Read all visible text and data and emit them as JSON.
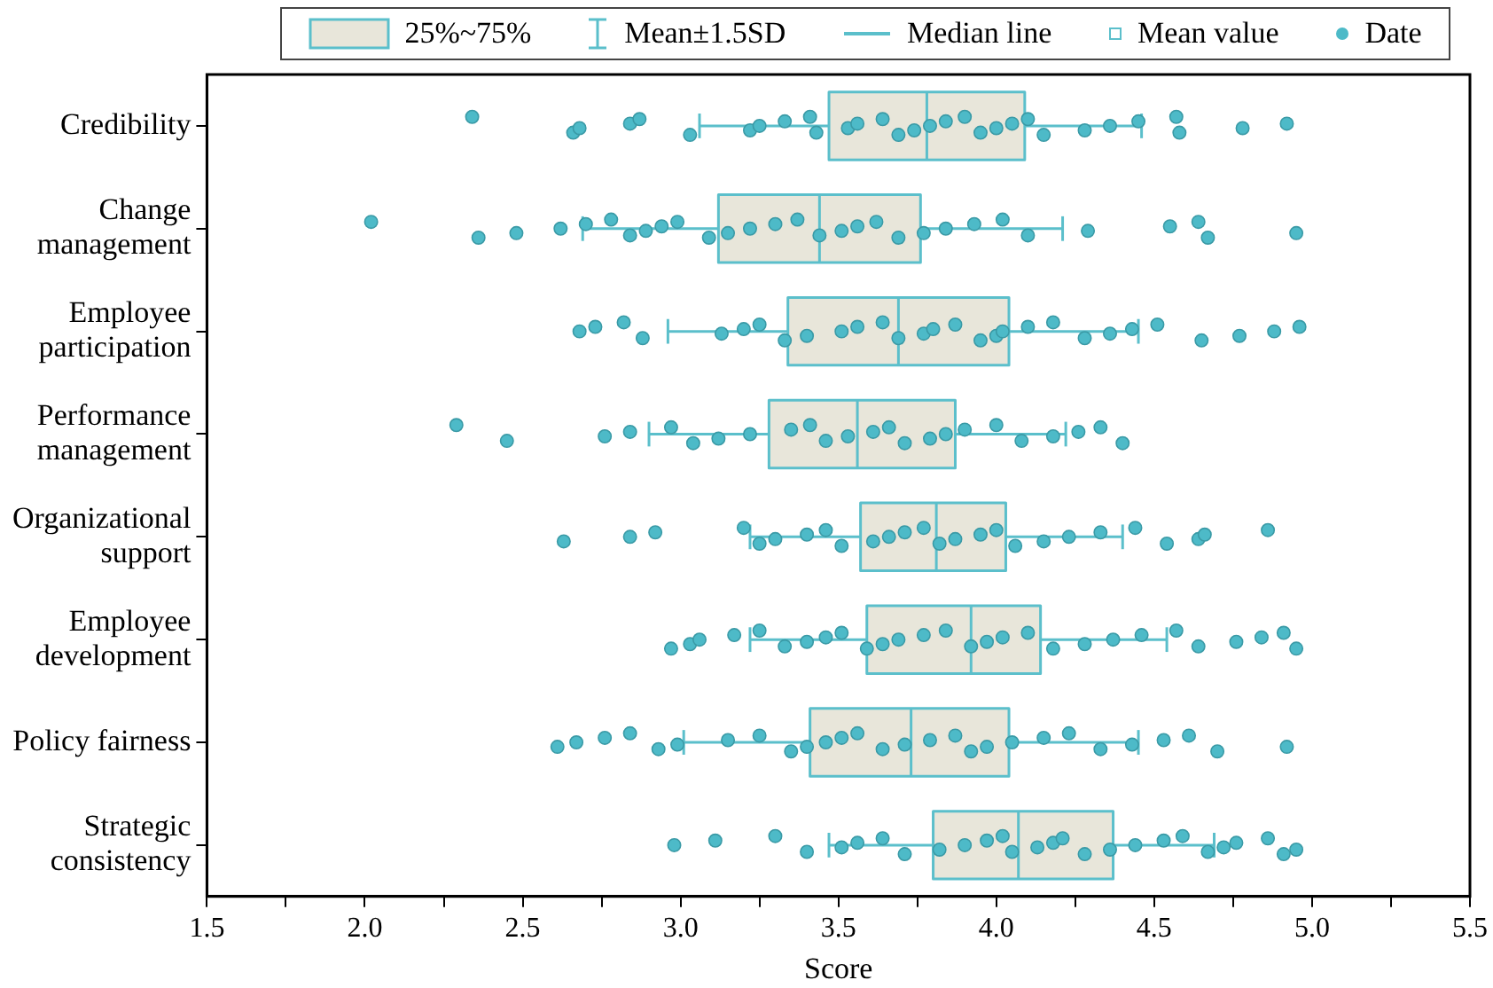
{
  "chart_data": {
    "type": "box",
    "orientation": "horizontal",
    "legend": "top",
    "marker": "circle",
    "xlabel": "Score",
    "categories": [
      "Credibility",
      "Change management",
      "Employee participation",
      "Performance management",
      "Organizational support",
      "Employee development",
      "Policy fairness",
      "Strategic consistency"
    ],
    "xlim": [
      1.5,
      5.5
    ],
    "xticks": [
      1.5,
      {
        "value": 1.75,
        "label": null
      },
      {
        "value": 2,
        "label": "2.0"
      },
      {
        "value": 2.25,
        "label": null
      },
      2.5,
      {
        "value": 2.75,
        "label": null
      },
      {
        "value": 3,
        "label": "3.0"
      },
      {
        "value": 3.25,
        "label": null
      },
      3.5,
      {
        "value": 3.75,
        "label": null
      },
      {
        "value": 4,
        "label": "4.0"
      },
      {
        "value": 4.25,
        "label": null
      },
      4.5,
      {
        "value": 4.75,
        "label": null
      },
      {
        "value": 5,
        "label": "5.0"
      },
      {
        "value": 5.25,
        "label": null
      },
      5.5
    ],
    "annotations": [
      "Mean±1.5SD",
      "Median line",
      "Mean value"
    ],
    "series": [
      {
        "type": "box",
        "name": "25%~75%",
        "color": "#5bbfcb",
        "boxes": [
          {
            "low": 3.06,
            "q1": 3.47,
            "median": 3.78,
            "q3": 4.09,
            "high": 4.46
          },
          {
            "low": 2.69,
            "q1": 3.12,
            "median": 3.44,
            "q3": 3.76,
            "high": 4.21
          },
          {
            "low": 2.96,
            "q1": 3.34,
            "median": 3.69,
            "q3": 4.04,
            "high": 4.45
          },
          {
            "low": 2.9,
            "q1": 3.28,
            "median": 3.56,
            "q3": 3.87,
            "high": 4.22
          },
          {
            "low": 3.22,
            "q1": 3.57,
            "median": 3.81,
            "q3": 4.03,
            "high": 4.4
          },
          {
            "low": 3.22,
            "q1": 3.59,
            "median": 3.92,
            "q3": 4.14,
            "high": 4.54
          },
          {
            "low": 3.01,
            "q1": 3.41,
            "median": 3.73,
            "q3": 4.04,
            "high": 4.45
          },
          {
            "low": 3.47,
            "q1": 3.8,
            "median": 4.07,
            "q3": 4.37,
            "high": 4.69
          }
        ]
      },
      {
        "type": "scatter",
        "name": "Date",
        "color": "#4dbac8",
        "x": [
          "Credibility",
          "Credibility",
          "Credibility",
          "Credibility",
          "Credibility",
          "Credibility",
          "Credibility",
          "Credibility",
          "Credibility",
          "Credibility",
          "Credibility",
          "Credibility",
          "Credibility",
          "Credibility",
          "Credibility",
          "Credibility",
          "Credibility",
          "Credibility",
          "Credibility",
          "Credibility",
          "Credibility",
          "Credibility",
          "Credibility",
          "Credibility",
          "Credibility",
          "Credibility",
          "Credibility",
          "Credibility",
          "Credibility",
          "Credibility",
          "Credibility",
          "Change management",
          "Change management",
          "Change management",
          "Change management",
          "Change management",
          "Change management",
          "Change management",
          "Change management",
          "Change management",
          "Change management",
          "Change management",
          "Change management",
          "Change management",
          "Change management",
          "Change management",
          "Change management",
          "Change management",
          "Change management",
          "Change management",
          "Change management",
          "Change management",
          "Change management",
          "Change management",
          "Change management",
          "Change management",
          "Change management",
          "Change management",
          "Change management",
          "Change management",
          "Change management",
          "Employee participation",
          "Employee participation",
          "Employee participation",
          "Employee participation",
          "Employee participation",
          "Employee participation",
          "Employee participation",
          "Employee participation",
          "Employee participation",
          "Employee participation",
          "Employee participation",
          "Employee participation",
          "Employee participation",
          "Employee participation",
          "Employee participation",
          "Employee participation",
          "Employee participation",
          "Employee participation",
          "Employee participation",
          "Employee participation",
          "Employee participation",
          "Employee participation",
          "Employee participation",
          "Employee participation",
          "Employee participation",
          "Employee participation",
          "Employee participation",
          "Employee participation",
          "Employee participation",
          "Performance management",
          "Performance management",
          "Performance management",
          "Performance management",
          "Performance management",
          "Performance management",
          "Performance management",
          "Performance management",
          "Performance management",
          "Performance management",
          "Performance management",
          "Performance management",
          "Performance management",
          "Performance management",
          "Performance management",
          "Performance management",
          "Performance management",
          "Performance management",
          "Performance management",
          "Performance management",
          "Performance management",
          "Performance management",
          "Performance management",
          "Performance management",
          "Organizational support",
          "Organizational support",
          "Organizational support",
          "Organizational support",
          "Organizational support",
          "Organizational support",
          "Organizational support",
          "Organizational support",
          "Organizational support",
          "Organizational support",
          "Organizational support",
          "Organizational support",
          "Organizational support",
          "Organizational support",
          "Organizational support",
          "Organizational support",
          "Organizational support",
          "Organizational support",
          "Organizational support",
          "Organizational support",
          "Organizational support",
          "Organizational support",
          "Organizational support",
          "Organizational support",
          "Organizational support",
          "Organizational support",
          "Employee development",
          "Employee development",
          "Employee development",
          "Employee development",
          "Employee development",
          "Employee development",
          "Employee development",
          "Employee development",
          "Employee development",
          "Employee development",
          "Employee development",
          "Employee development",
          "Employee development",
          "Employee development",
          "Employee development",
          "Employee development",
          "Employee development",
          "Employee development",
          "Employee development",
          "Employee development",
          "Employee development",
          "Employee development",
          "Employee development",
          "Employee development",
          "Employee development",
          "Employee development",
          "Employee development",
          "Employee development",
          "Policy fairness",
          "Policy fairness",
          "Policy fairness",
          "Policy fairness",
          "Policy fairness",
          "Policy fairness",
          "Policy fairness",
          "Policy fairness",
          "Policy fairness",
          "Policy fairness",
          "Policy fairness",
          "Policy fairness",
          "Policy fairness",
          "Policy fairness",
          "Policy fairness",
          "Policy fairness",
          "Policy fairness",
          "Policy fairness",
          "Policy fairness",
          "Policy fairness",
          "Policy fairness",
          "Policy fairness",
          "Policy fairness",
          "Policy fairness",
          "Policy fairness",
          "Policy fairness",
          "Policy fairness",
          "Policy fairness",
          "Strategic consistency",
          "Strategic consistency",
          "Strategic consistency",
          "Strategic consistency",
          "Strategic consistency",
          "Strategic consistency",
          "Strategic consistency",
          "Strategic consistency",
          "Strategic consistency",
          "Strategic consistency",
          "Strategic consistency",
          "Strategic consistency",
          "Strategic consistency",
          "Strategic consistency",
          "Strategic consistency",
          "Strategic consistency",
          "Strategic consistency",
          "Strategic consistency",
          "Strategic consistency",
          "Strategic consistency",
          "Strategic consistency",
          "Strategic consistency",
          "Strategic consistency",
          "Strategic consistency",
          "Strategic consistency",
          "Strategic consistency",
          "Strategic consistency"
        ],
        "values": [
          2.34,
          2.66,
          2.68,
          2.84,
          2.87,
          3.03,
          3.22,
          3.25,
          3.33,
          3.41,
          3.43,
          3.53,
          3.56,
          3.64,
          3.69,
          3.74,
          3.79,
          3.84,
          3.9,
          3.95,
          4.0,
          4.05,
          4.1,
          4.15,
          4.28,
          4.36,
          4.45,
          4.57,
          4.58,
          4.78,
          4.92,
          2.02,
          2.36,
          2.48,
          2.62,
          2.7,
          2.78,
          2.84,
          2.89,
          2.94,
          2.99,
          3.09,
          3.15,
          3.22,
          3.3,
          3.37,
          3.44,
          3.51,
          3.56,
          3.62,
          3.69,
          3.77,
          3.84,
          3.93,
          4.02,
          4.1,
          4.29,
          4.55,
          4.64,
          4.67,
          4.95,
          2.68,
          2.73,
          2.82,
          2.88,
          3.13,
          3.2,
          3.25,
          3.33,
          3.4,
          3.51,
          3.56,
          3.64,
          3.69,
          3.77,
          3.8,
          3.87,
          3.95,
          4.0,
          4.02,
          4.1,
          4.18,
          4.28,
          4.36,
          4.43,
          4.51,
          4.65,
          4.77,
          4.88,
          4.96,
          2.29,
          2.45,
          2.76,
          2.84,
          2.97,
          3.04,
          3.12,
          3.22,
          3.35,
          3.41,
          3.46,
          3.53,
          3.61,
          3.66,
          3.71,
          3.79,
          3.84,
          3.9,
          4.0,
          4.08,
          4.18,
          4.26,
          4.33,
          4.4,
          2.63,
          2.84,
          2.92,
          3.2,
          3.25,
          3.3,
          3.4,
          3.46,
          3.51,
          3.61,
          3.66,
          3.71,
          3.77,
          3.82,
          3.87,
          3.95,
          4.0,
          4.06,
          4.15,
          4.23,
          4.33,
          4.44,
          4.54,
          4.64,
          4.66,
          4.86,
          2.97,
          3.03,
          3.06,
          3.17,
          3.25,
          3.33,
          3.4,
          3.46,
          3.51,
          3.59,
          3.64,
          3.69,
          3.77,
          3.84,
          3.92,
          3.97,
          4.02,
          4.1,
          4.18,
          4.28,
          4.37,
          4.46,
          4.57,
          4.64,
          4.76,
          4.84,
          4.91,
          4.95,
          2.61,
          2.67,
          2.76,
          2.84,
          2.93,
          2.99,
          3.15,
          3.25,
          3.35,
          3.4,
          3.46,
          3.51,
          3.56,
          3.64,
          3.71,
          3.79,
          3.87,
          3.92,
          3.97,
          4.05,
          4.15,
          4.23,
          4.33,
          4.43,
          4.53,
          4.61,
          4.7,
          4.92,
          2.98,
          3.11,
          3.3,
          3.4,
          3.51,
          3.56,
          3.64,
          3.71,
          3.82,
          3.9,
          3.97,
          4.02,
          4.05,
          4.13,
          4.18,
          4.21,
          4.28,
          4.36,
          4.44,
          4.53,
          4.59,
          4.67,
          4.72,
          4.76,
          4.86,
          4.91,
          4.95
        ]
      }
    ]
  }
}
